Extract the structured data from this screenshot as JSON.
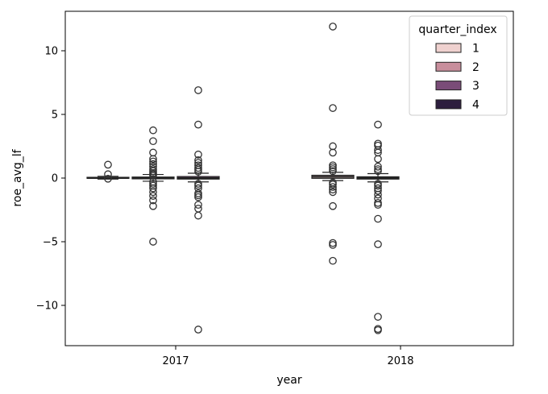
{
  "chart_data": {
    "type": "box",
    "xlabel": "year",
    "ylabel": "roe_avg_lf",
    "categories": [
      "2017",
      "2018"
    ],
    "ylim": [
      -13,
      13
    ],
    "yticks": [
      -10,
      -5,
      0,
      5,
      10
    ],
    "ytick_labels": [
      "−10",
      "−5",
      "0",
      "5",
      "10"
    ],
    "grid": false,
    "legend": {
      "title": "quarter_index",
      "placement": "top-right",
      "entries": [
        {
          "label": "1",
          "color": "#efd1cf"
        },
        {
          "label": "2",
          "color": "#c88e9c"
        },
        {
          "label": "3",
          "color": "#7a4c78"
        },
        {
          "label": "4",
          "color": "#2d1e3e"
        }
      ]
    },
    "series": [
      {
        "category": "2017",
        "hue": "1",
        "median": 0.0,
        "q1": -0.02,
        "q3": 0.06,
        "whisker_low": -0.08,
        "whisker_high": 0.14,
        "outliers": [
          1.05,
          0.3,
          -0.05
        ]
      },
      {
        "category": "2017",
        "hue": "2",
        "median": 0.0,
        "q1": -0.06,
        "q3": 0.08,
        "whisker_low": -0.25,
        "whisker_high": 0.28,
        "outliers": [
          3.75,
          2.9,
          2.0,
          1.5,
          1.3,
          1.1,
          0.9,
          0.7,
          0.55,
          0.4,
          0.3,
          0.2,
          -0.3,
          -0.45,
          -0.6,
          -0.8,
          -1.1,
          -1.4,
          -1.75,
          -2.2,
          -5.0
        ]
      },
      {
        "category": "2017",
        "hue": "3",
        "median": 0.0,
        "q1": -0.08,
        "q3": 0.12,
        "whisker_low": -0.3,
        "whisker_high": 0.38,
        "outliers": [
          6.9,
          4.2,
          1.85,
          1.4,
          1.2,
          1.0,
          0.8,
          0.65,
          0.5,
          -0.45,
          -0.6,
          -0.8,
          -1.2,
          -1.35,
          -1.5,
          -2.1,
          -2.4,
          -2.95,
          -11.9
        ]
      },
      {
        "category": "2018",
        "hue": "1",
        "median": 0.1,
        "q1": -0.02,
        "q3": 0.22,
        "whisker_low": -0.2,
        "whisker_high": 0.45,
        "outliers": [
          11.9,
          5.5,
          2.5,
          2.0,
          1.0,
          0.85,
          0.7,
          0.55,
          -0.35,
          -0.5,
          -0.7,
          -0.9,
          -1.1,
          -2.2,
          -5.1,
          -5.25,
          -6.5
        ]
      },
      {
        "category": "2018",
        "hue": "2",
        "median": 0.0,
        "q1": -0.08,
        "q3": 0.1,
        "whisker_low": -0.3,
        "whisker_high": 0.35,
        "outliers": [
          4.2,
          2.7,
          2.55,
          2.2,
          2.0,
          1.5,
          0.9,
          0.7,
          0.55,
          -0.45,
          -0.6,
          -0.8,
          -1.0,
          -1.3,
          -1.6,
          -1.95,
          -2.1,
          -3.2,
          -5.2,
          -10.9,
          -11.85,
          -11.95
        ]
      }
    ]
  }
}
